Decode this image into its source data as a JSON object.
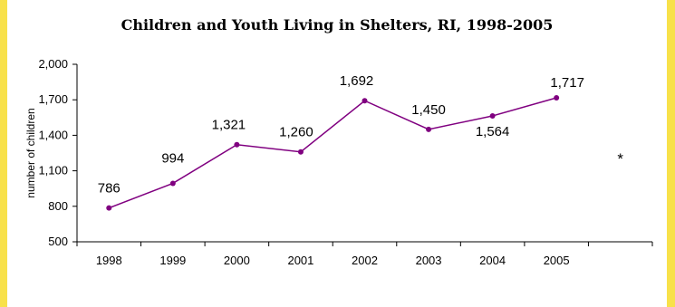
{
  "chart_data": {
    "type": "line",
    "title": "Children and Youth Living in Shelters, RI, 1998-2005",
    "xlabel": "",
    "ylabel": "number of children",
    "categories": [
      "1998",
      "1999",
      "2000",
      "2001",
      "2002",
      "2003",
      "2004",
      "2005"
    ],
    "series": [
      {
        "values": [
          786,
          994,
          1321,
          1260,
          1692,
          1450,
          1564,
          1717
        ]
      }
    ],
    "data_labels": [
      "786",
      "994",
      "1,321",
      "1,260",
      "1,692",
      "1,450",
      "1,564",
      "1,717"
    ],
    "ylim": [
      500,
      2000
    ],
    "yticks": [
      500,
      800,
      1100,
      1400,
      1700,
      2000
    ],
    "ytick_labels": [
      "500",
      "800",
      "1,100",
      "1,400",
      "1,700",
      "2,000"
    ],
    "grid": false,
    "legend": "none",
    "annotation": "*",
    "colors": {
      "line": "#800080",
      "background": "#ffffff",
      "border": "#f8e14a"
    }
  }
}
